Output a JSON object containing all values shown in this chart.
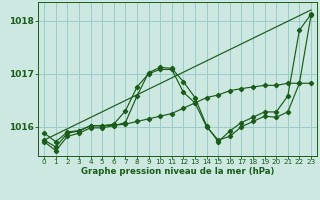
{
  "title": "Graphe pression niveau de la mer (hPa)",
  "bg_color": "#cce8e0",
  "grid_color": "#99cccc",
  "line_color": "#1a5c1a",
  "xlim": [
    -0.5,
    23.5
  ],
  "ylim": [
    1015.45,
    1018.35
  ],
  "yticks": [
    1016,
    1017,
    1018
  ],
  "xticks": [
    0,
    1,
    2,
    3,
    4,
    5,
    6,
    7,
    8,
    9,
    10,
    11,
    12,
    13,
    14,
    15,
    16,
    17,
    18,
    19,
    20,
    21,
    22,
    23
  ],
  "series_diag": {
    "x": [
      0,
      23
    ],
    "y": [
      1015.75,
      1018.2
    ]
  },
  "series_a": {
    "x": [
      0,
      1,
      2,
      3,
      4,
      5,
      6,
      7,
      8,
      9,
      10,
      11,
      12,
      13,
      14,
      15,
      16,
      17,
      18,
      19,
      20,
      21,
      22,
      23
    ],
    "y": [
      1015.88,
      1015.72,
      1015.9,
      1015.93,
      1016.02,
      1016.02,
      1016.03,
      1016.05,
      1016.1,
      1016.15,
      1016.2,
      1016.25,
      1016.35,
      1016.45,
      1016.55,
      1016.6,
      1016.68,
      1016.72,
      1016.75,
      1016.78,
      1016.78,
      1016.82,
      1016.82,
      1016.82
    ]
  },
  "series_b": {
    "x": [
      0,
      1,
      2,
      3,
      4,
      5,
      6,
      7,
      8,
      9,
      10,
      11,
      12,
      13,
      14,
      15,
      16,
      17,
      18,
      19,
      20,
      21,
      22,
      23
    ],
    "y": [
      1015.75,
      1015.62,
      1015.88,
      1015.92,
      1016.02,
      1016.02,
      1016.05,
      1016.3,
      1016.75,
      1017.0,
      1017.08,
      1017.08,
      1016.65,
      1016.45,
      1016.0,
      1015.75,
      1015.82,
      1016.0,
      1016.1,
      1016.2,
      1016.18,
      1016.28,
      1016.82,
      1018.1
    ]
  },
  "series_c": {
    "x": [
      0,
      1,
      2,
      3,
      4,
      5,
      6,
      7,
      8,
      9,
      10,
      11,
      12,
      13,
      14,
      15,
      16,
      17,
      18,
      19,
      20,
      21,
      22,
      23
    ],
    "y": [
      1015.72,
      1015.55,
      1015.82,
      1015.88,
      1015.98,
      1015.98,
      1016.02,
      1016.08,
      1016.58,
      1017.02,
      1017.12,
      1017.1,
      1016.85,
      1016.55,
      1016.02,
      1015.72,
      1015.92,
      1016.08,
      1016.18,
      1016.28,
      1016.28,
      1016.58,
      1017.82,
      1018.12
    ]
  }
}
